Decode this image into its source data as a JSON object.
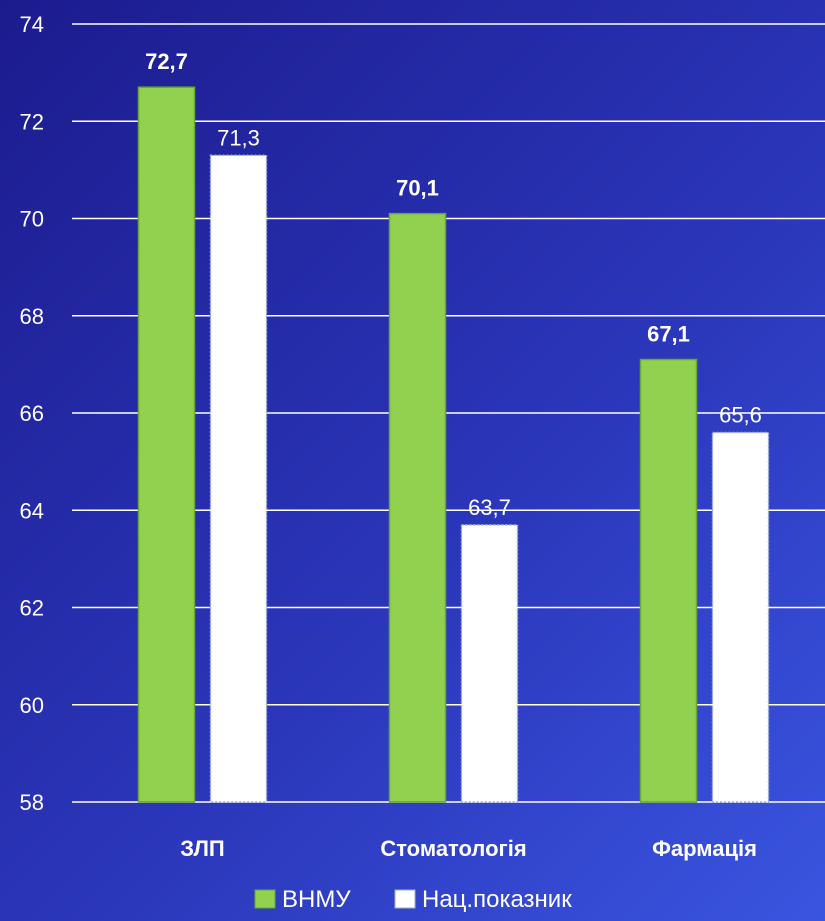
{
  "chart_data": {
    "type": "bar",
    "categories": [
      "ЗЛП",
      "Стоматологія",
      "Фармація"
    ],
    "series": [
      {
        "name": "ВНМУ",
        "values": [
          72.7,
          70.1,
          67.1
        ],
        "value_labels": [
          "72,7",
          "70,1",
          "67,1"
        ],
        "color": "#92d050"
      },
      {
        "name": "Нац.показник",
        "values": [
          71.3,
          63.7,
          65.6
        ],
        "value_labels": [
          "71,3",
          "63,7",
          "65,6"
        ],
        "color": "#ffffff"
      }
    ],
    "ylim": [
      58,
      74
    ],
    "yticks": [
      58,
      60,
      62,
      64,
      66,
      68,
      70,
      72,
      74
    ],
    "grid": true,
    "legend_position": "bottom"
  }
}
